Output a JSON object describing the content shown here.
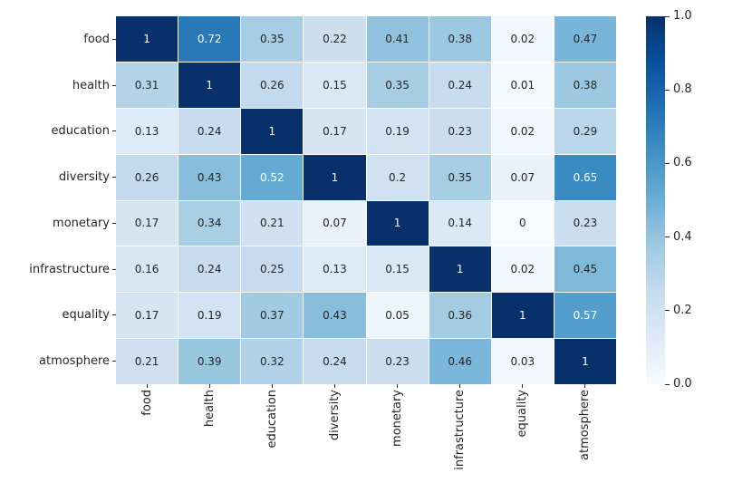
{
  "figure": {
    "background": "#ffffff",
    "annotation_text_dark": "#262626",
    "annotation_text_light": "#ffffff",
    "gridline_color": "#ffffff"
  },
  "chart_data": {
    "type": "heatmap",
    "title": "",
    "rows": [
      "food",
      "health",
      "education",
      "diversity",
      "monetary",
      "infrastructure",
      "equality",
      "atmosphere"
    ],
    "columns": [
      "food",
      "health",
      "education",
      "diversity",
      "monetary",
      "infrastructure",
      "equality",
      "atmosphere"
    ],
    "values": [
      [
        1,
        0.72,
        0.35,
        0.22,
        0.41,
        0.38,
        0.02,
        0.47
      ],
      [
        0.31,
        1,
        0.26,
        0.15,
        0.35,
        0.24,
        0.01,
        0.38
      ],
      [
        0.13,
        0.24,
        1,
        0.17,
        0.19,
        0.23,
        0.02,
        0.29
      ],
      [
        0.26,
        0.43,
        0.52,
        1,
        0.2,
        0.35,
        0.07,
        0.65
      ],
      [
        0.17,
        0.34,
        0.21,
        0.07,
        1,
        0.14,
        0,
        0.23
      ],
      [
        0.16,
        0.24,
        0.25,
        0.13,
        0.15,
        1,
        0.02,
        0.45
      ],
      [
        0.17,
        0.19,
        0.37,
        0.43,
        0.05,
        0.36,
        1,
        0.57
      ],
      [
        0.21,
        0.39,
        0.32,
        0.24,
        0.23,
        0.46,
        0.03,
        1
      ]
    ],
    "vmin": 0,
    "vmax": 1,
    "colormap": "Blues",
    "colormap_stops": [
      "#f7fbff",
      "#deebf7",
      "#c6dbef",
      "#9ecae1",
      "#6baed6",
      "#4292c6",
      "#2171b5",
      "#08519c",
      "#08306b"
    ],
    "text_color_threshold": 0.5,
    "legend_position": "right",
    "grid": false,
    "colorbar_ticks": [
      "1.0",
      "0.8",
      "0.6",
      "0.4",
      "0.2",
      "0.0"
    ],
    "colorbar_tick_values": [
      1.0,
      0.8,
      0.6,
      0.4,
      0.2,
      0.0
    ]
  }
}
